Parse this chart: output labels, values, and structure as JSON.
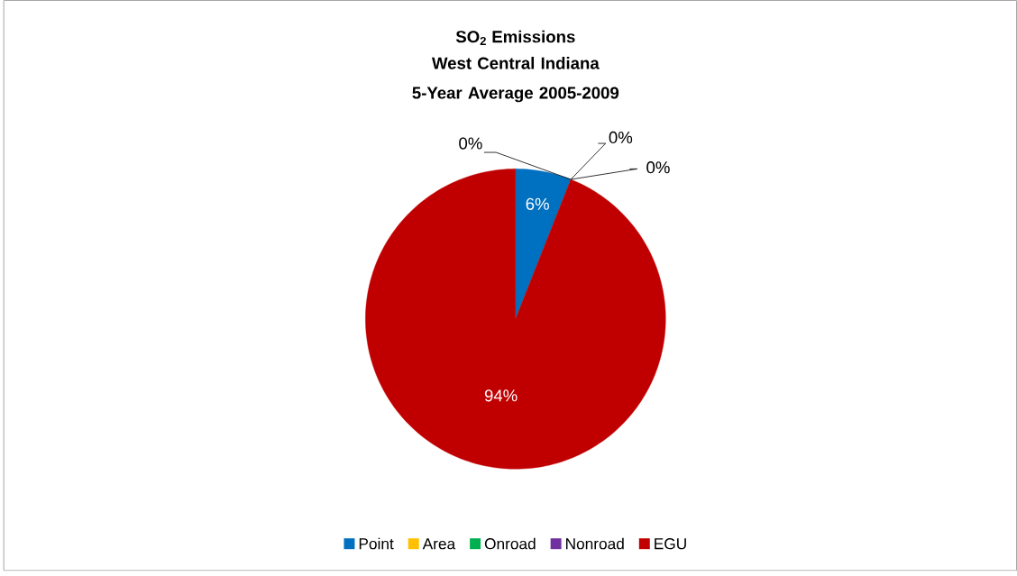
{
  "chart_data": {
    "type": "pie",
    "title": "SO$_{2}$ Emissions",
    "subtitle": "West Central Indiana 5-Year Average 2005-2009",
    "categories": [
      "Point",
      "Area",
      "Onroad",
      "Nonroad",
      "EGU"
    ],
    "values": [
      6,
      0,
      0,
      0,
      94
    ],
    "colors": [
      "#0070c0",
      "#ffc000",
      "#00b050",
      "#7030a0",
      "#c00000"
    ],
    "value_labels": [
      "6%",
      "0%",
      "0%",
      "0%",
      "94%"
    ],
    "legend": "bottom"
  }
}
